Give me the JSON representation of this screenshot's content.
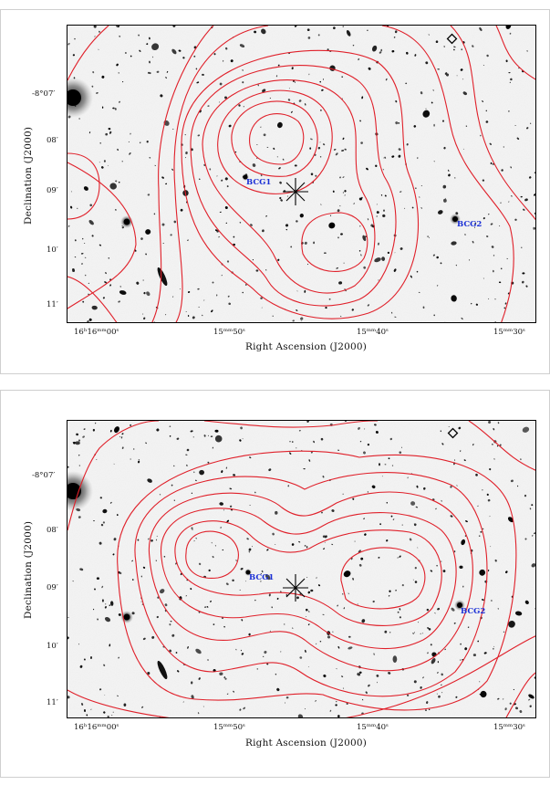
{
  "panels": [
    {
      "ylabel": "Declination (J2000)",
      "xlabel": "Right Ascension (J2000)",
      "xticks": [
        "16ʰ16ᵐᵐ00ˢ",
        "15ᵐᵐ50ˢ",
        "15ᵐᵐ40ˢ",
        "15ᵐᵐ30ˢ"
      ],
      "yticks": [
        "-8°07′",
        "08′",
        "09′",
        "10′",
        "11′"
      ],
      "annotations": [
        "BCG1",
        "BCG2"
      ]
    },
    {
      "ylabel": "Declination (J2000)",
      "xlabel": "Right Ascension (J2000)",
      "xticks": [
        "16ʰ16ᵐᵐ00ˢ",
        "15ᵐᵐ50ˢ",
        "15ᵐᵐ40ˢ",
        "15ᵐᵐ30ˢ"
      ],
      "yticks": [
        "-8°07′",
        "08′",
        "09′",
        "10′",
        "11′"
      ],
      "annotations": [
        "BCG1",
        "BCG2"
      ]
    }
  ],
  "colors": {
    "contour": "#e0202a",
    "label": "#1a2fd6",
    "sky": "#eeeeee"
  }
}
